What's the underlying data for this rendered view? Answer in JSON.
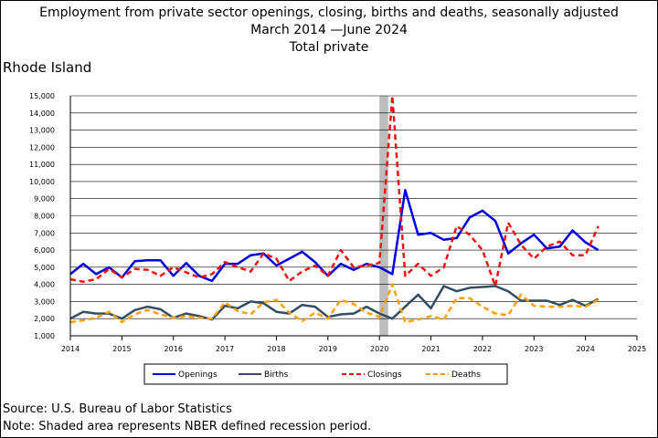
{
  "titles": {
    "line1": "Employment from private sector openings, closing, births and deaths, seasonally adjusted",
    "line2": "March 2014  —June 2024",
    "line3": "Total private"
  },
  "region": "Rhode Island",
  "footer": {
    "source": "Source: U.S. Bureau of Labor Statistics",
    "note": "Note: Shaded area represents NBER defined recession period."
  },
  "chart_data": {
    "type": "line",
    "xlim": [
      2014,
      2025
    ],
    "ylim": [
      1000,
      15000
    ],
    "x_ticks": [
      2014,
      2015,
      2016,
      2017,
      2018,
      2019,
      2020,
      2021,
      2022,
      2023,
      2024,
      2025
    ],
    "y_ticks": [
      1000,
      2000,
      3000,
      4000,
      5000,
      6000,
      7000,
      8000,
      9000,
      10000,
      11000,
      12000,
      13000,
      14000,
      15000
    ],
    "y_tick_labels": [
      "1,000",
      "2,000",
      "3,000",
      "4,000",
      "5,000",
      "6,000",
      "7,000",
      "8,000",
      "9,000",
      "10,000",
      "11,000",
      "12,000",
      "13,000",
      "14,000",
      "15,000"
    ],
    "grid": "horizontal",
    "legend_placement": "bottom",
    "recession_shading": [
      2020.0,
      2020.17
    ],
    "x": [
      2014.0,
      2014.25,
      2014.5,
      2014.75,
      2015.0,
      2015.25,
      2015.5,
      2015.75,
      2016.0,
      2016.25,
      2016.5,
      2016.75,
      2017.0,
      2017.25,
      2017.5,
      2017.75,
      2018.0,
      2018.25,
      2018.5,
      2018.75,
      2019.0,
      2019.25,
      2019.5,
      2019.75,
      2020.0,
      2020.25,
      2020.5,
      2020.75,
      2021.0,
      2021.25,
      2021.5,
      2021.75,
      2022.0,
      2022.25,
      2022.5,
      2022.75,
      2023.0,
      2023.25,
      2023.5,
      2023.75,
      2024.0,
      2024.25
    ],
    "series": [
      {
        "name": "Openings",
        "color": "#0000dd",
        "dash": "solid",
        "width": 2.5,
        "values": [
          4600,
          5200,
          4600,
          5000,
          4400,
          5350,
          5400,
          5400,
          4500,
          5250,
          4500,
          4200,
          5200,
          5200,
          5700,
          5800,
          5100,
          5500,
          5900,
          5300,
          4500,
          5200,
          4850,
          5200,
          5000,
          4600,
          9500,
          6900,
          7000,
          6600,
          6700,
          7900,
          8300,
          7700,
          5800,
          6400,
          6900,
          6100,
          6200,
          7150,
          6450,
          6000
        ]
      },
      {
        "name": "Births",
        "color": "#334d66",
        "dash": "solid",
        "width": 2.5,
        "values": [
          2000,
          2400,
          2300,
          2300,
          2000,
          2500,
          2700,
          2550,
          2050,
          2300,
          2150,
          1950,
          2750,
          2600,
          3000,
          2900,
          2400,
          2300,
          2800,
          2700,
          2100,
          2250,
          2300,
          2700,
          2300,
          2000,
          2700,
          3400,
          2600,
          3900,
          3600,
          3800,
          3850,
          3900,
          3600,
          3050,
          3050,
          3050,
          2800,
          3100,
          2750,
          3150
        ]
      },
      {
        "name": "Closings",
        "color": "#ee1111",
        "dash": "6,4",
        "width": 2.5,
        "values": [
          4300,
          4150,
          4300,
          4900,
          4400,
          4900,
          4850,
          4500,
          5000,
          4700,
          4400,
          4600,
          5300,
          5000,
          4750,
          5800,
          5500,
          4200,
          4750,
          5100,
          4500,
          6000,
          5000,
          5100,
          5250,
          15000,
          4500,
          5200,
          4500,
          5000,
          7400,
          6900,
          6000,
          3900,
          7600,
          6300,
          5500,
          6200,
          6500,
          5700,
          5700,
          7400
        ]
      },
      {
        "name": "Deaths",
        "color": "#ffa000",
        "dash": "6,4",
        "width": 2.5,
        "values": [
          1800,
          1900,
          2050,
          2400,
          1800,
          2250,
          2500,
          2250,
          2050,
          2150,
          2050,
          2000,
          2950,
          2450,
          2250,
          2950,
          3100,
          2350,
          1850,
          2350,
          2000,
          3100,
          2850,
          2350,
          2100,
          4000,
          1800,
          1950,
          2150,
          1950,
          3200,
          3200,
          2700,
          2300,
          2200,
          3400,
          2750,
          2700,
          2700,
          2750,
          2700,
          3100
        ]
      }
    ]
  }
}
